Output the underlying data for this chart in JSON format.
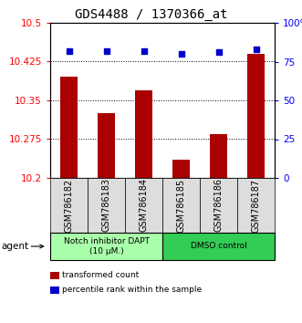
{
  "title": "GDS4488 / 1370366_at",
  "samples": [
    "GSM786182",
    "GSM786183",
    "GSM786184",
    "GSM786185",
    "GSM786186",
    "GSM786187"
  ],
  "bar_values": [
    10.395,
    10.325,
    10.37,
    10.235,
    10.285,
    10.44
  ],
  "percentile_values": [
    82,
    82,
    82,
    80,
    81,
    83
  ],
  "ylim_left": [
    10.2,
    10.5
  ],
  "ylim_right": [
    0,
    100
  ],
  "yticks_left": [
    10.2,
    10.275,
    10.35,
    10.425,
    10.5
  ],
  "ytick_labels_left": [
    "10.2",
    "10.275",
    "10.35",
    "10.425",
    "10.5"
  ],
  "yticks_right": [
    0,
    25,
    50,
    75,
    100
  ],
  "ytick_labels_right": [
    "0",
    "25",
    "50",
    "75",
    "100%"
  ],
  "bar_color": "#aa0000",
  "dot_color": "#0000cc",
  "grid_color": "#000000",
  "agent_groups": [
    {
      "label": "Notch inhibitor DAPT\n(10 μM.)",
      "start": 0,
      "end": 3,
      "color": "#aaffaa"
    },
    {
      "label": "DMSO control",
      "start": 3,
      "end": 6,
      "color": "#33cc55"
    }
  ],
  "legend_bar_label": "transformed count",
  "legend_dot_label": "percentile rank within the sample",
  "agent_label": "agent",
  "title_fontsize": 10,
  "tick_fontsize": 7.5,
  "sample_fontsize": 7,
  "label_fontsize": 7.5
}
